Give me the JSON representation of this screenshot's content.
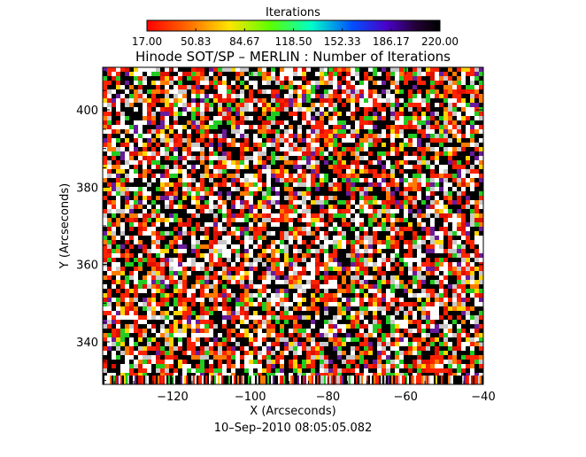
{
  "chart_data": {
    "type": "heatmap",
    "title": "Hinode SOT/SP – MERLIN : Number of Iterations",
    "xlabel": "X (Arcseconds)",
    "ylabel": "Y (Arcseconds)",
    "xlim": [
      -138,
      -40
    ],
    "ylim": [
      329,
      411
    ],
    "x_ticks": [
      -120,
      -100,
      -80,
      -60,
      -40
    ],
    "y_ticks": [
      340,
      360,
      380,
      400
    ],
    "x_tick_labels": [
      "−120",
      "−100",
      "−80",
      "−60",
      "−40"
    ],
    "y_tick_labels": [
      "340",
      "360",
      "380",
      "400"
    ],
    "timestamp": "10–Sep–2010 08:05:05.082",
    "colorbar": {
      "title": "Iterations",
      "range": [
        17.0,
        220.0
      ],
      "placement": "top",
      "colormap": "rainbow-to-black",
      "tick_values": [
        17.0,
        50.83,
        84.67,
        118.5,
        152.33,
        186.17,
        220.0
      ],
      "tick_labels": [
        "17.00",
        "50.83",
        "84.67",
        "118.50",
        "152.33",
        "186.17",
        "220.00"
      ]
    },
    "map_colors": [
      "#000000",
      "#ffffff",
      "#ff2200",
      "#e01000",
      "#ff7a00",
      "#c8c8c8",
      "#22cc22",
      "#6a1b9a",
      "#ffd400"
    ],
    "notes_visible": "dense noise-like iteration map"
  }
}
